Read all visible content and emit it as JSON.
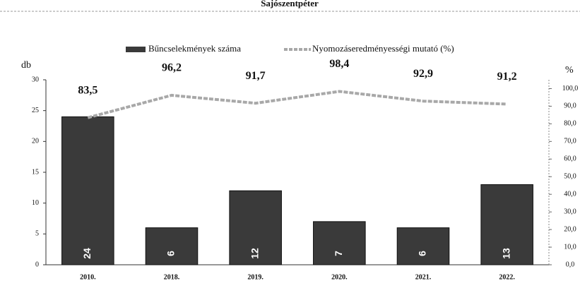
{
  "chart_data": {
    "type": "bar",
    "title": "Sajószentpéter",
    "categories": [
      "2010.",
      "2018.",
      "2019.",
      "2020.",
      "2021.",
      "2022."
    ],
    "series": [
      {
        "name": "Bűncselekmények száma",
        "type": "bar",
        "color": "#3a3a3a",
        "values": [
          24,
          6,
          12,
          7,
          6,
          13
        ]
      },
      {
        "name": "Nyomozáseredményességi mutató (%)",
        "type": "line",
        "axis": "y2",
        "color": "#a8a8a8",
        "values": [
          83.5,
          96.2,
          91.7,
          98.4,
          92.9,
          91.2
        ],
        "value_labels": [
          "83,5",
          "96,2",
          "91,7",
          "98,4",
          "92,9",
          "91,2"
        ]
      }
    ],
    "ylabel": "db",
    "y2label": "%",
    "ylim": [
      0,
      30
    ],
    "yticks": [
      0,
      5,
      10,
      15,
      20,
      25,
      30
    ],
    "y2lim": [
      0,
      105
    ],
    "y2ticks": [
      {
        "value": 0,
        "label": "0,0"
      },
      {
        "value": 10,
        "label": "10,0"
      },
      {
        "value": 20,
        "label": "20,0"
      },
      {
        "value": 30,
        "label": "30,0"
      },
      {
        "value": 40,
        "label": "40,0"
      },
      {
        "value": 50,
        "label": "50,0"
      },
      {
        "value": 60,
        "label": "60,0"
      },
      {
        "value": 70,
        "label": "70,0"
      },
      {
        "value": 80,
        "label": "80,0"
      },
      {
        "value": 90,
        "label": "90,0"
      },
      {
        "value": 100,
        "label": "100,0"
      }
    ],
    "legend": "top"
  }
}
